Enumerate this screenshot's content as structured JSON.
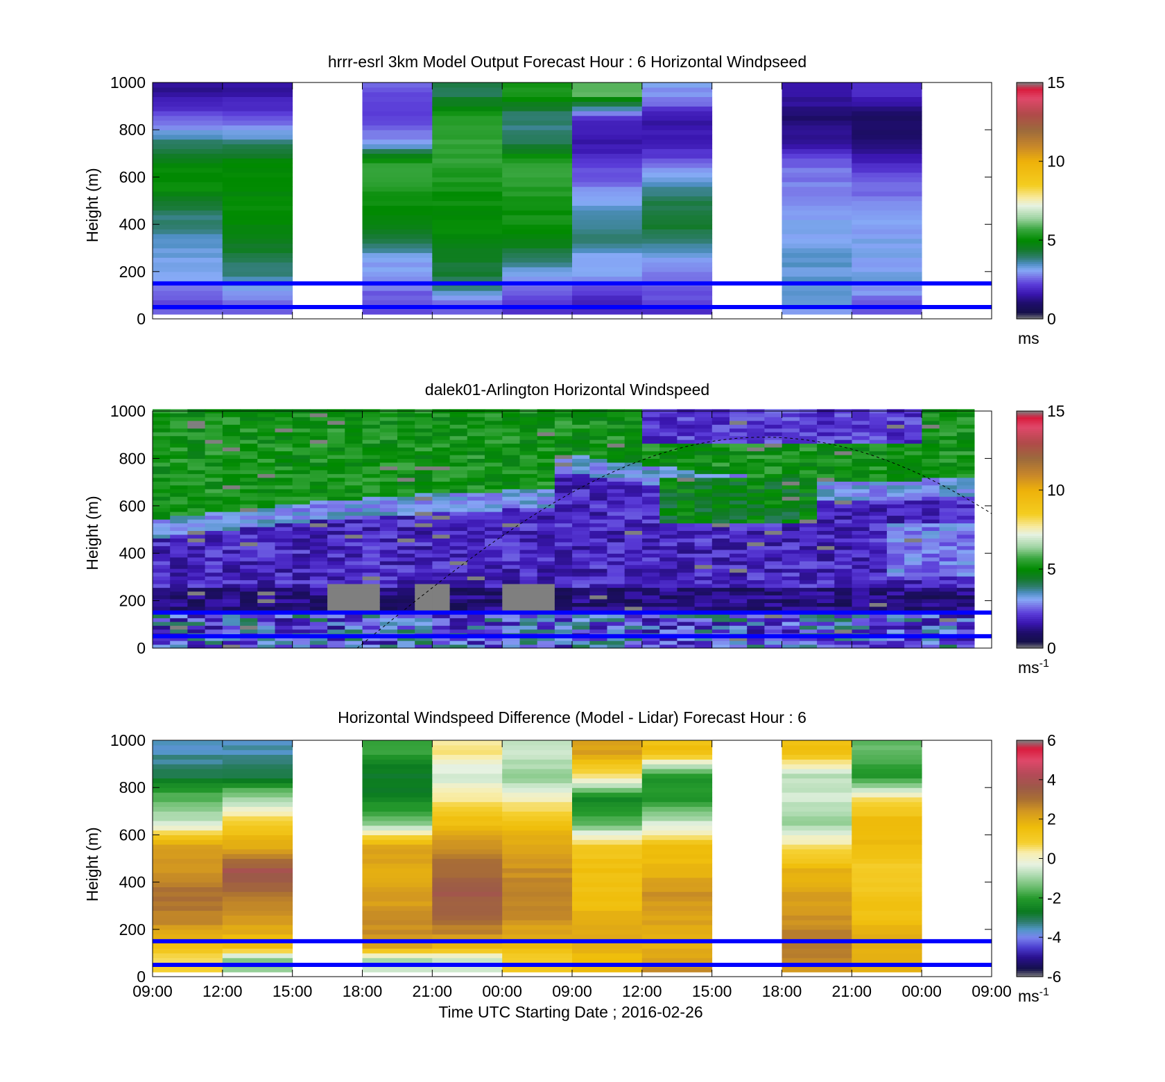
{
  "panels": [
    {
      "title": "hrrr-esrl 3km Model Output   Forecast Hour : 6 Horizontal Windpseed",
      "ylabel": "Height (m)",
      "yticks": [
        "0",
        "200",
        "400",
        "600",
        "800",
        "1000"
      ],
      "colorbar": {
        "ticks": [
          "0",
          "5",
          "10",
          "15"
        ],
        "unit": "ms",
        "range": [
          0,
          15
        ]
      }
    },
    {
      "title": "dalek01-Arlington  Horizontal Windspeed",
      "ylabel": "Height (m)",
      "yticks": [
        "0",
        "200",
        "400",
        "600",
        "800",
        "1000"
      ],
      "colorbar": {
        "ticks": [
          "0",
          "5",
          "10",
          "15"
        ],
        "unit": "ms",
        "unit_sup": "-1",
        "range": [
          0,
          15
        ]
      }
    },
    {
      "title": "Horizontal Windspeed Difference (Model - Lidar) Forecast Hour : 6",
      "ylabel": "Height (m)",
      "yticks": [
        "0",
        "200",
        "400",
        "600",
        "800",
        "1000"
      ],
      "colorbar": {
        "ticks": [
          "-6",
          "-4",
          "-2",
          "0",
          "2",
          "4",
          "6"
        ],
        "unit": "ms",
        "unit_sup": "-1",
        "range": [
          -6,
          6
        ]
      }
    }
  ],
  "xaxis": {
    "ticks": [
      "09:00",
      "12:00",
      "15:00",
      "18:00",
      "21:00",
      "00:00",
      "09:00",
      "12:00",
      "15:00",
      "18:00",
      "21:00",
      "00:00",
      "09:00"
    ],
    "label": "Time UTC  Starting Date ; 2016-02-26"
  },
  "chart_data": [
    {
      "type": "heatmap",
      "title": "hrrr-esrl 3km Model Output   Forecast Hour : 6 Horizontal Windpseed",
      "ylabel": "Height (m)",
      "ylim": [
        0,
        1000
      ],
      "x_slots": [
        "09:00",
        "12:00",
        "15:00",
        "18:00",
        "21:00",
        "00:00",
        "09:00",
        "12:00",
        "15:00",
        "18:00",
        "21:00",
        "00:00"
      ],
      "heights": [
        25,
        75,
        125,
        175,
        250,
        350,
        450,
        550,
        650,
        750,
        850,
        950
      ],
      "values": [
        [
          2.5,
          2.2,
          2.6,
          3.0,
          3.2,
          3.6,
          4.0,
          5.0,
          5.0,
          3.8,
          2.4,
          1.4
        ],
        [
          2.6,
          2.6,
          3.2,
          3.6,
          4.2,
          4.8,
          5.0,
          5.0,
          5.0,
          3.8,
          2.3,
          1.5
        ],
        null,
        [
          2.2,
          2.4,
          2.6,
          3.0,
          3.0,
          4.5,
          4.8,
          5.5,
          5.6,
          3.0,
          2.2,
          2.4
        ],
        [
          2.4,
          2.5,
          3.8,
          4.2,
          4.5,
          5.0,
          5.0,
          5.2,
          5.5,
          5.6,
          5.4,
          4.2
        ],
        [
          2.0,
          2.1,
          2.6,
          3.0,
          3.8,
          5.0,
          5.2,
          5.4,
          5.6,
          4.0,
          3.8,
          5.2
        ],
        [
          1.8,
          1.9,
          2.1,
          3.0,
          3.0,
          4.0,
          3.6,
          2.8,
          2.2,
          1.5,
          2.0,
          5.8
        ],
        [
          2.0,
          2.2,
          2.4,
          2.6,
          3.0,
          4.2,
          4.4,
          3.6,
          2.6,
          1.6,
          1.6,
          3.0
        ],
        null,
        [
          3.0,
          3.2,
          3.4,
          3.4,
          3.4,
          3.2,
          3.1,
          2.8,
          2.6,
          1.5,
          1.0,
          1.6
        ],
        [
          2.4,
          2.6,
          3.0,
          3.2,
          3.1,
          3.1,
          3.0,
          2.6,
          2.0,
          1.0,
          0.8,
          1.8
        ],
        null
      ],
      "reference_lines_m": [
        50,
        150
      ]
    },
    {
      "type": "heatmap",
      "title": "dalek01-Arlington  Horizontal Windspeed",
      "ylabel": "Height (m)",
      "ylim": [
        0,
        1000
      ],
      "description_values": "lidar windspeed 0-15 m/s; green (4-6) aloft above ~550 m early, purple (1-2.5) below; gray = missing",
      "reference_lines_m": [
        50,
        150
      ]
    },
    {
      "type": "heatmap",
      "title": "Horizontal Windspeed Difference (Model - Lidar) Forecast Hour : 6",
      "ylabel": "Height (m)",
      "ylim": [
        0,
        1000
      ],
      "x_slots": [
        "09:00",
        "12:00",
        "15:00",
        "18:00",
        "21:00",
        "00:00",
        "09:00",
        "12:00",
        "15:00",
        "18:00",
        "21:00",
        "00:00"
      ],
      "heights": [
        25,
        75,
        125,
        175,
        250,
        350,
        450,
        550,
        650,
        750,
        850,
        950
      ],
      "values": [
        [
          1.0,
          0.5,
          1.5,
          2.0,
          2.8,
          3.0,
          2.5,
          2.2,
          -0.5,
          -1.5,
          -3.0,
          -3.5
        ],
        [
          -1.0,
          -1.2,
          1.5,
          1.8,
          2.5,
          3.0,
          3.8,
          2.0,
          1.0,
          -0.8,
          -3.0,
          -3.5
        ],
        null,
        [
          -0.6,
          -0.8,
          2.0,
          2.5,
          2.5,
          2.2,
          2.0,
          2.2,
          -1.2,
          -2.5,
          -2.8,
          -2.0
        ],
        [
          -0.4,
          -0.6,
          1.5,
          2.5,
          3.2,
          3.6,
          3.2,
          2.5,
          1.5,
          0.5,
          -0.6,
          0.5
        ],
        [
          1.2,
          1.0,
          1.5,
          2.0,
          2.5,
          2.8,
          2.5,
          2.0,
          1.5,
          0.2,
          -1.2,
          -0.5
        ],
        [
          1.5,
          1.5,
          1.8,
          2.0,
          1.8,
          1.5,
          1.5,
          1.2,
          -1.5,
          -2.5,
          0.5,
          2.2
        ],
        [
          2.5,
          2.2,
          2.0,
          2.0,
          2.2,
          2.5,
          1.8,
          1.5,
          -0.5,
          -2.2,
          -2.0,
          1.5
        ],
        null,
        [
          2.5,
          2.8,
          2.8,
          2.8,
          2.5,
          2.2,
          1.8,
          0.5,
          -1.0,
          -0.5,
          -0.8,
          1.5
        ],
        [
          1.8,
          2.0,
          2.0,
          1.8,
          1.5,
          1.2,
          1.0,
          1.5,
          1.8,
          0.5,
          -2.0,
          -1.5
        ],
        null
      ],
      "reference_lines_m": [
        50,
        150
      ]
    }
  ]
}
